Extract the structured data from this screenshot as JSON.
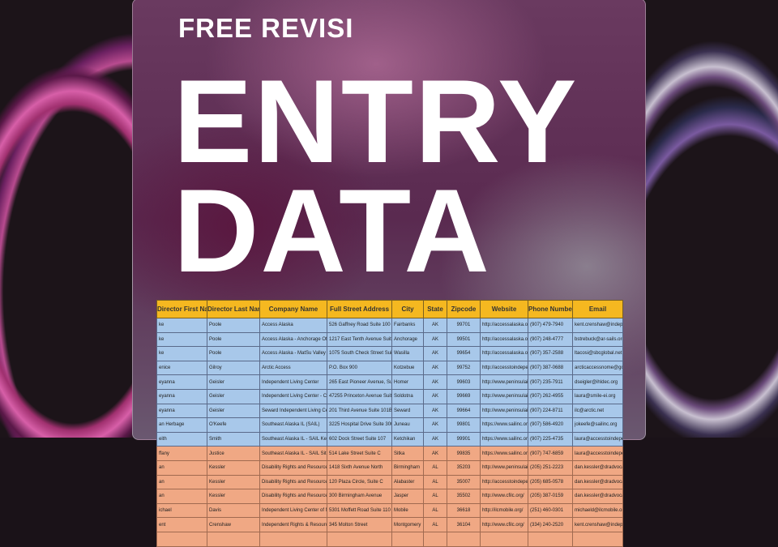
{
  "headline": {
    "top": "FREE REVISI",
    "line1": "ENTRY",
    "line2": "DATA"
  },
  "table": {
    "headers": [
      "Director First Name",
      "Director Last Name",
      "Company Name",
      "Full Street Address",
      "City",
      "State",
      "Zipcode",
      "Website",
      "Phone Number",
      "Email"
    ],
    "rows": [
      {
        "color": "blue",
        "cells": [
          "ke",
          "Poole",
          "Access Alaska",
          "526 Gaffney Road Suite 100",
          "Fairbanks",
          "AK",
          "99701",
          "http://accessalaska.org/",
          "(907) 479-7940",
          "kent.crenshaw@indepe"
        ]
      },
      {
        "color": "blue",
        "cells": [
          "ke",
          "Poole",
          "Access Alaska - Anchorage Office",
          "1217 East Tenth Avenue Suite 105",
          "Anchorage",
          "AK",
          "99501",
          "http://accessalaska.org/",
          "(907) 248-4777",
          "bstrebuck@ar-sails.org"
        ]
      },
      {
        "color": "blue",
        "cells": [
          "ke",
          "Poole",
          "Access Alaska - MatSu Valley Office",
          "1075 South Check Street Suite 109",
          "Wasilla",
          "AK",
          "99654",
          "http://accessalaska.org/",
          "(907) 357-2588",
          "ltacosi@sbcglobal.net"
        ]
      },
      {
        "color": "blue",
        "cells": [
          "enice",
          "Gilroy",
          "Arctic Access",
          "P.O. Box 900",
          "Kotzebue",
          "AK",
          "99752",
          "http://accesstoindepend",
          "(907) 387-0688",
          "arcticaccessnome@gci.n"
        ]
      },
      {
        "color": "blue",
        "cells": [
          "eyanna",
          "Geisler",
          "Independent Living Center",
          "265 East Pioneer Avenue, Suite 201",
          "Homer",
          "AK",
          "99603",
          "http://www.peninsulailc",
          "(907) 235-7911",
          "dseigler@ihldec.org"
        ]
      },
      {
        "color": "blue",
        "cells": [
          "eyanna",
          "Geisler",
          "Independent Living Center - Central",
          "47255 Princeton Avenue Suite 8",
          "Soldotna",
          "AK",
          "99669",
          "http://www.peninsulailc",
          "(907) 262-4955",
          "laura@smile-ei.org"
        ]
      },
      {
        "color": "blue",
        "cells": [
          "eyanna",
          "Geisler",
          "Seward Independent Living Center",
          "201 Third Avenue Suite 101B",
          "Seward",
          "AK",
          "99664",
          "http://www.peninsulailc",
          "(907) 224-8711",
          "ilc@arctic.net"
        ]
      },
      {
        "color": "blue",
        "cells": [
          "an Herbage",
          "O'Keefe",
          "Southeast Alaska IL (SAIL)",
          "3225 Hospital Drive Suite 300",
          "Juneau",
          "AK",
          "99801",
          "https://www.sailinc.org/",
          "(907) 586-4920",
          "jokeefe@sailinc.org"
        ]
      },
      {
        "color": "blue",
        "cells": [
          "eith",
          "Smith",
          "Southeast Alaska IL - SAIL Ketchikan",
          "602 Dock Street Suite 107",
          "Ketchikan",
          "AK",
          "99901",
          "https://www.sailinc.org/",
          "(907) 225-4735",
          "laura@accesstoindepen"
        ]
      },
      {
        "color": "orange",
        "cells": [
          "ffany",
          "Justice",
          "Southeast Alaska IL - SAIL Sitka",
          "514 Lake Street Suite C",
          "Sitka",
          "AK",
          "99835",
          "https://www.sailinc.org/",
          "(907) 747-6859",
          "laura@accesstoindepen"
        ]
      },
      {
        "color": "orange",
        "cells": [
          "an",
          "Kessler",
          "Disability Rights and Resources (DRR)",
          "1418 Sixth Avenue North",
          "Birmingham",
          "AL",
          "35203",
          "http://www.peninsulailc",
          "(205) 251-2223",
          "dan.kessler@dradvocat"
        ]
      },
      {
        "color": "orange",
        "cells": [
          "an",
          "Kessler",
          "Disability Rights and Resources -",
          "120 Plaza Circle, Suite C",
          "Alabaster",
          "AL",
          "35007",
          "http://accesstoindepend",
          "(205) 685-0578",
          "dan.kessler@dradvocat"
        ]
      },
      {
        "color": "orange",
        "cells": [
          "an",
          "Kessler",
          "Disability Rights and Resources -",
          "300 Birmingham Avenue",
          "Jasper",
          "AL",
          "35502",
          "http://www.cfilc.org/",
          "(205) 387-0159",
          "dan.kessler@dradvocat"
        ]
      },
      {
        "color": "orange",
        "cells": [
          "ichael",
          "Davis",
          "Independent Living Center of Mobile",
          "5301 Moffett Road Suite 110",
          "Mobile",
          "AL",
          "36618",
          "http://ilcmobile.org/",
          "(251) 460-0301",
          "michaeld@ilcmobile.org"
        ]
      },
      {
        "color": "orange",
        "cells": [
          "ent",
          "Crenshaw",
          "Independent Rights & Resources",
          "345 Molton Street",
          "Montgomery",
          "AL",
          "36104",
          "http://www.cfilc.org/",
          "(334) 240-2520",
          "kent.crenshaw@indepe"
        ]
      },
      {
        "color": "orange",
        "cells": [
          "",
          "",
          "",
          "",
          "",
          "",
          "",
          "",
          "",
          ""
        ]
      }
    ]
  },
  "colors": {
    "header": "#f5b820",
    "row_blue": "#a8c8ea",
    "row_orange": "#f0a884",
    "text": "#ffffff"
  }
}
